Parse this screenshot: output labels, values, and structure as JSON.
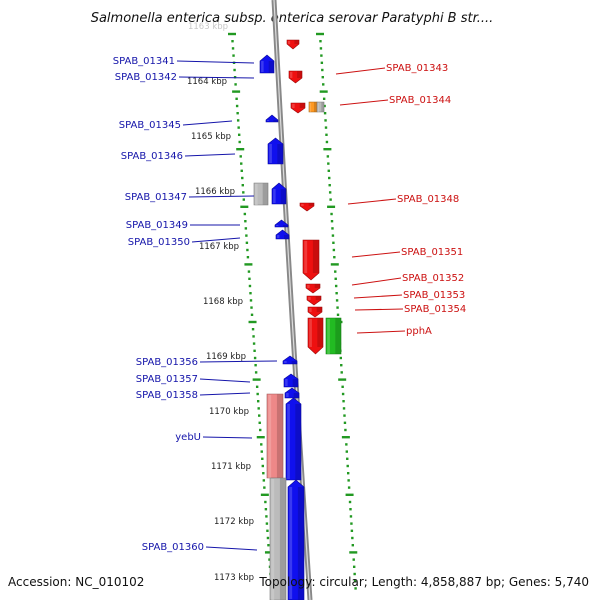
{
  "title": "Salmonella enterica subsp. enterica serovar Paratyphi B str....",
  "footer": {
    "accession": "Accession: NC_010102",
    "topology": "Topology: circular; Length: 4,858,887 bp; Genes: 5,740"
  },
  "colors": {
    "forward_gene": "#1010ee",
    "reverse_gene": "#ee1010",
    "rna_gene": "#22bb22",
    "pseudo_gene": "#ee8888",
    "other_gene": "#ff9922",
    "grey_feature": "#bbbbbb",
    "left_label": "#1515aa",
    "right_label": "#cc1111",
    "tick": "#229922",
    "backbone": "#888888"
  },
  "scale_labels": [
    "1163 kbp",
    "1164 kbp",
    "1165 kbp",
    "1166 kbp",
    "1167 kbp",
    "1168 kbp",
    "1169 kbp",
    "1170 kbp",
    "1171 kbp",
    "1172 kbp",
    "1173 kbp"
  ],
  "left_genes": [
    "SPAB_01341",
    "SPAB_01342",
    "SPAB_01345",
    "SPAB_01346",
    "SPAB_01347",
    "SPAB_01349",
    "SPAB_01350",
    "SPAB_01356",
    "SPAB_01357",
    "SPAB_01358",
    "yebU",
    "SPAB_01360"
  ],
  "right_genes": [
    "SPAB_01343",
    "SPAB_01344",
    "SPAB_01348",
    "SPAB_01351",
    "SPAB_01352",
    "SPAB_01353",
    "SPAB_01354",
    "pphA"
  ]
}
